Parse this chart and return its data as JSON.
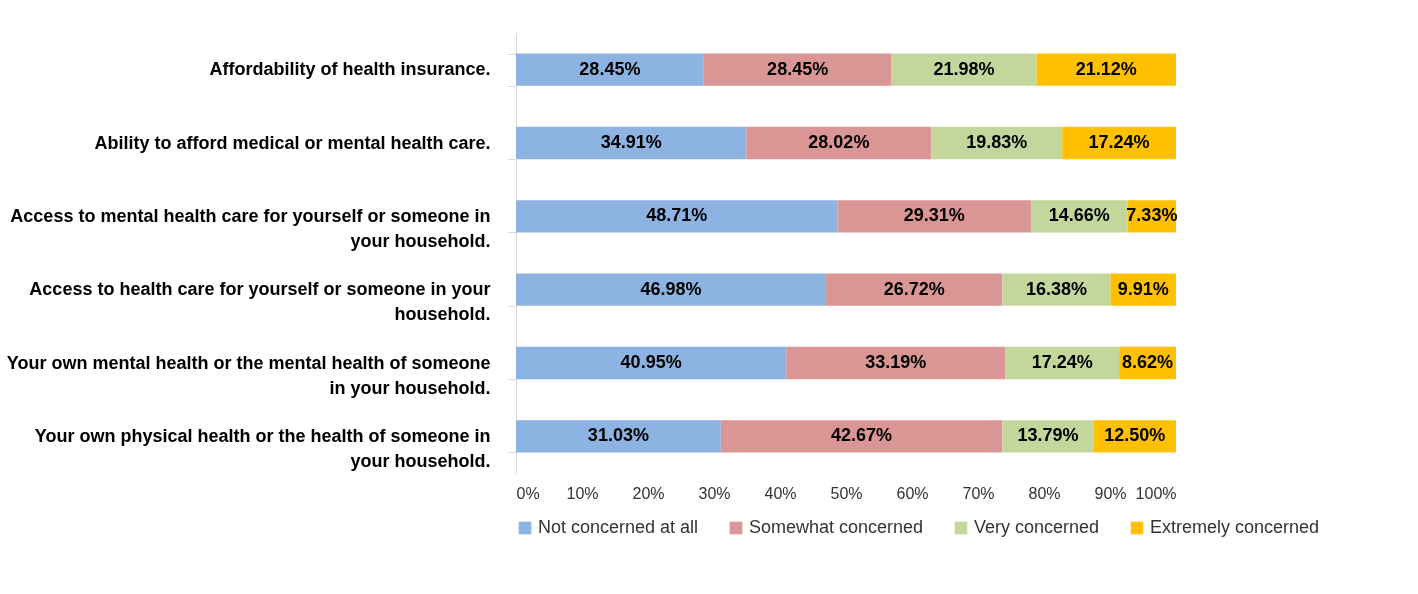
{
  "chart_data": {
    "type": "bar",
    "orientation": "horizontal",
    "stacked": true,
    "legend": "bottom",
    "grid": false,
    "categories": [
      "Affordability of health insurance.",
      "Ability to afford medical or mental health care.",
      "Access to mental health care for yourself or someone in your household.",
      "Access to health care for yourself or someone in your household.",
      "Your own mental health or the mental health of someone in your household.",
      "Your own physical health or the health of someone in your household."
    ],
    "xlim": [
      0,
      100
    ],
    "xticks": [
      {
        "value": 0,
        "label": "0%"
      },
      {
        "value": 10,
        "label": "10%"
      },
      {
        "value": 20,
        "label": "20%"
      },
      {
        "value": 30,
        "label": "30%"
      },
      {
        "value": 40,
        "label": "40%"
      },
      {
        "value": 50,
        "label": "50%"
      },
      {
        "value": 60,
        "label": "60%"
      },
      {
        "value": 70,
        "label": "70%"
      },
      {
        "value": 80,
        "label": "80%"
      },
      {
        "value": 90,
        "label": "90%"
      },
      {
        "value": 100,
        "label": "100%"
      }
    ],
    "series": [
      {
        "name": "Not concerned at all",
        "color": "#8db3e2",
        "values": [
          28.45,
          34.91,
          48.71,
          46.98,
          40.95,
          31.03
        ],
        "value_labels": [
          "28.45%",
          "34.91%",
          "48.71%",
          "46.98%",
          "40.95%",
          "31.03%"
        ]
      },
      {
        "name": "Somewhat concerned",
        "color": "#d99694",
        "values": [
          28.45,
          28.02,
          29.31,
          26.72,
          33.19,
          42.67
        ],
        "value_labels": [
          "28.45%",
          "28.02%",
          "29.31%",
          "26.72%",
          "33.19%",
          "42.67%"
        ]
      },
      {
        "name": "Very concerned",
        "color": "#c3d69b",
        "values": [
          21.98,
          19.83,
          14.66,
          16.38,
          17.24,
          13.79
        ],
        "value_labels": [
          "21.98%",
          "19.83%",
          "14.66%",
          "16.38%",
          "17.24%",
          "13.79%"
        ]
      },
      {
        "name": "Extremely concerned",
        "color": "#ffc000",
        "values": [
          21.12,
          17.24,
          7.33,
          9.91,
          8.62,
          12.5
        ],
        "value_labels": [
          "21.12%",
          "17.24%",
          "7.33%",
          "9.91%",
          "8.62%",
          "12.50%"
        ]
      }
    ]
  }
}
